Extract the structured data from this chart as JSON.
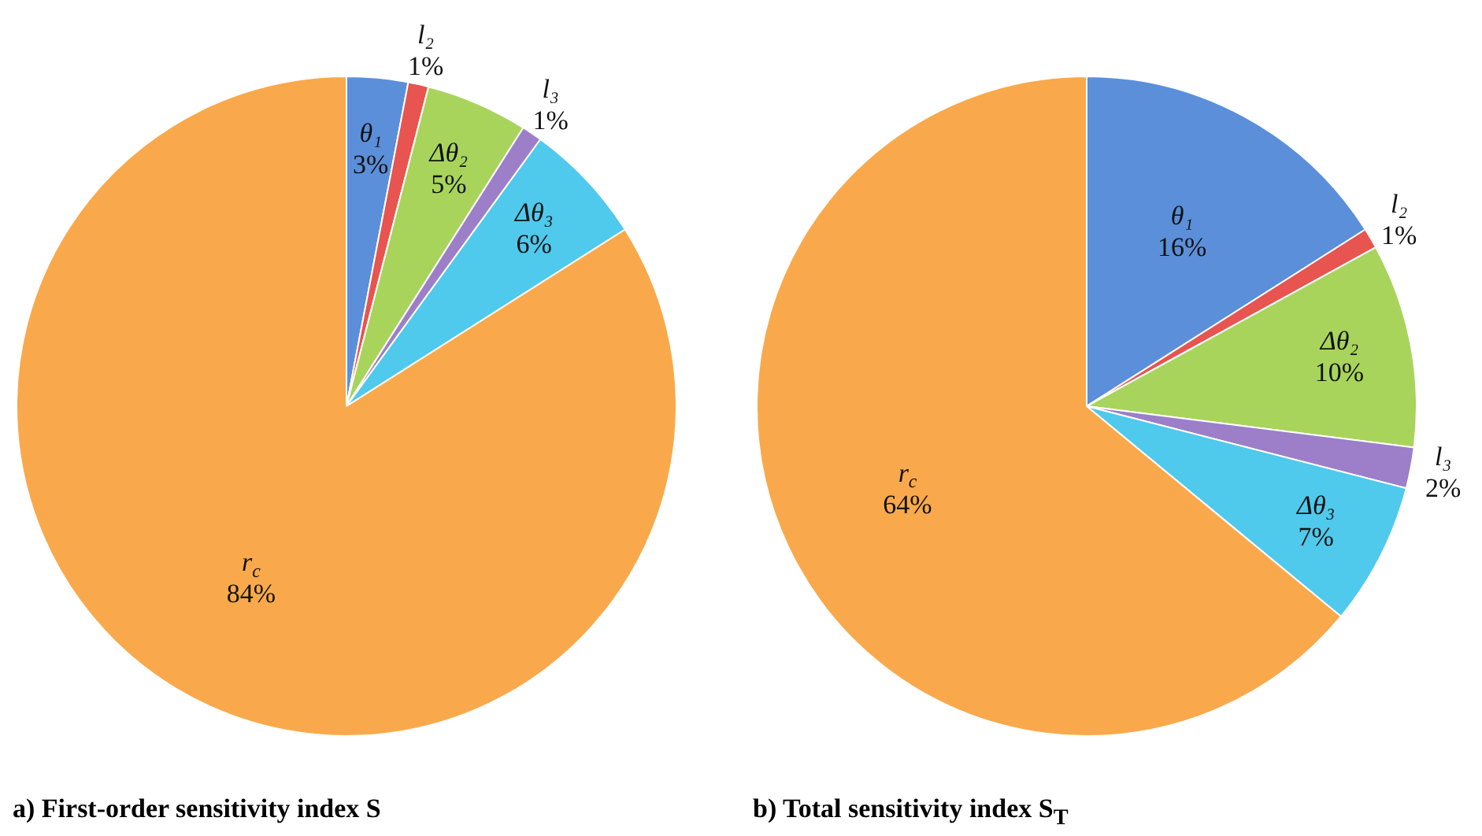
{
  "chart_data": [
    {
      "type": "pie",
      "title": "a) First-order sensitivity index S",
      "categories": [
        "θ₁",
        "l₂",
        "Δθ₂",
        "l₃",
        "Δθ₃",
        "r$_{c}$"
      ],
      "values": [
        3,
        1,
        5,
        1,
        6,
        84
      ],
      "colors": [
        "#5b8fd9",
        "#e8544f",
        "#a8d45c",
        "#9c7fc8",
        "#4fc9ec",
        "#f9a94b"
      ],
      "value_labels": [
        "3%",
        "1%",
        "5%",
        "1%",
        "6%",
        "84%"
      ]
    },
    {
      "type": "pie",
      "title": "b) Total sensitivity index S$_{T}$",
      "categories": [
        "θ₁",
        "l₂",
        "Δθ₂",
        "l₃",
        "Δθ₃",
        "r$_{c}$"
      ],
      "values": [
        16,
        1,
        10,
        2,
        7,
        64
      ],
      "colors": [
        "#5b8fd9",
        "#e8544f",
        "#a8d45c",
        "#9c7fc8",
        "#4fc9ec",
        "#f9a94b"
      ],
      "value_labels": [
        "16%",
        "1%",
        "10%",
        "2%",
        "7%",
        "64%"
      ]
    }
  ]
}
